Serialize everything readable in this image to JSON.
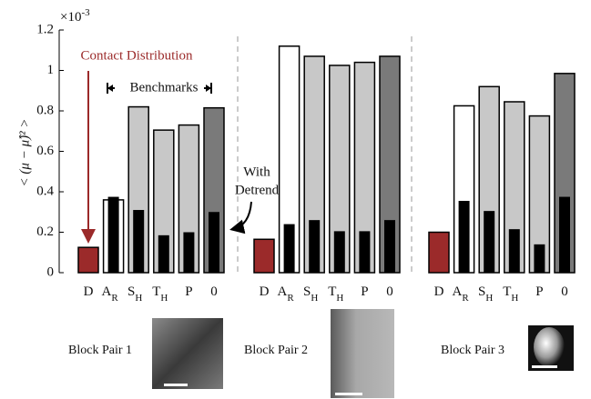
{
  "chart_data": {
    "type": "bar",
    "y_label": "< (μ − μ̂)² >",
    "y_multiplier": {
      "base": "×10",
      "exponent": "-3"
    },
    "ylim": [
      0,
      1.2
    ],
    "yticks": [
      0,
      0.2,
      0.4,
      0.6,
      0.8,
      1,
      1.2
    ],
    "categories": [
      {
        "text": "D"
      },
      {
        "text": "A",
        "sub": "R"
      },
      {
        "text": "S",
        "sub": "H"
      },
      {
        "text": "T",
        "sub": "H"
      },
      {
        "text": "P"
      },
      {
        "text": "0"
      }
    ],
    "colors": [
      "#9b2a2a",
      "#ffffff",
      "#c8c8c8",
      "#c8c8c8",
      "#c8c8c8",
      "#7a7a7a"
    ],
    "detrend_color": "#000000",
    "groups": [
      {
        "label": "Block Pair 1",
        "values": [
          0.125,
          0.36,
          0.82,
          0.705,
          0.73,
          0.815
        ],
        "detrend_values": [
          null,
          0.375,
          0.31,
          0.185,
          0.2,
          0.3
        ]
      },
      {
        "label": "Block Pair 2",
        "values": [
          0.165,
          1.12,
          1.07,
          1.025,
          1.04,
          1.07
        ],
        "detrend_values": [
          null,
          0.24,
          0.26,
          0.205,
          0.205,
          0.26
        ]
      },
      {
        "label": "Block Pair 3",
        "values": [
          0.2,
          0.825,
          0.92,
          0.845,
          0.775,
          0.985
        ],
        "detrend_values": [
          null,
          0.355,
          0.305,
          0.215,
          0.14,
          0.375
        ]
      }
    ],
    "annotations": {
      "contact": "Contact Distribution",
      "benchmarks": "Benchmarks",
      "detrend": [
        "With",
        "Detrend"
      ]
    }
  }
}
